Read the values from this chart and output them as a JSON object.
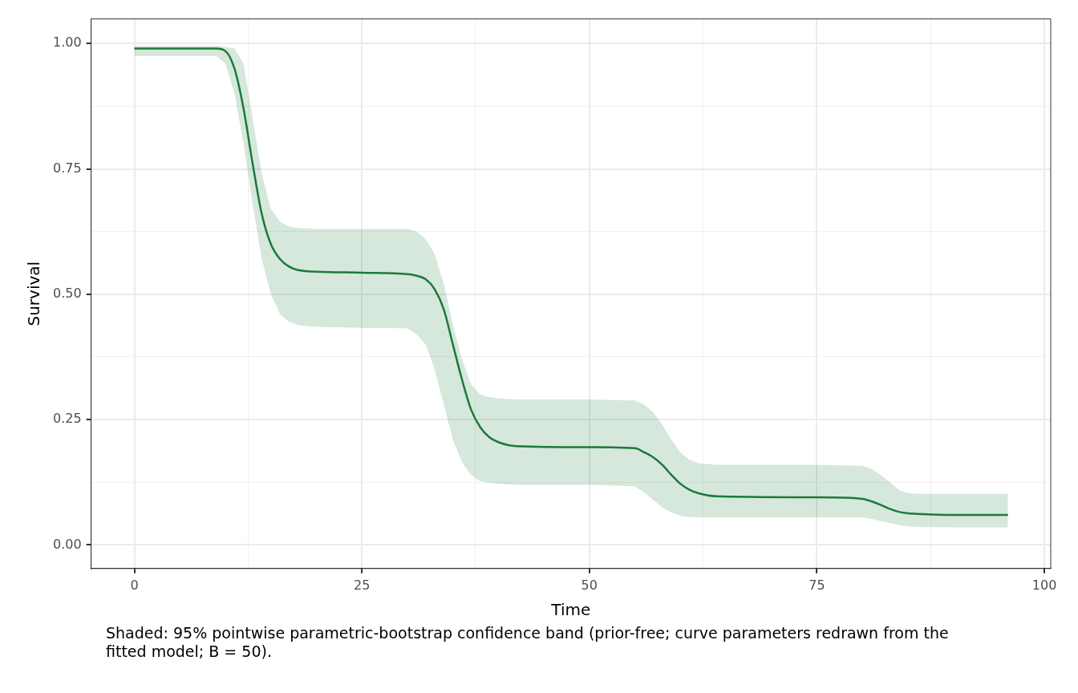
{
  "chart_data": {
    "type": "line",
    "xlabel": "Time",
    "ylabel": "Survival",
    "x": [
      0,
      5,
      9,
      10,
      11,
      12,
      13,
      14,
      15,
      16,
      17,
      18,
      20,
      25,
      30,
      31,
      32,
      33,
      34,
      35,
      36,
      37,
      38,
      39,
      40,
      42,
      50,
      55,
      56,
      57,
      58,
      59,
      60,
      61,
      62,
      64,
      75,
      80,
      81,
      82,
      83,
      84,
      85,
      86,
      90,
      96
    ],
    "series": [
      {
        "color": "#1b7a3a",
        "values": [
          0.99,
          0.99,
          0.99,
          0.985,
          0.95,
          0.87,
          0.76,
          0.66,
          0.6,
          0.57,
          0.555,
          0.548,
          0.545,
          0.543,
          0.54,
          0.537,
          0.53,
          0.51,
          0.47,
          0.4,
          0.33,
          0.27,
          0.235,
          0.215,
          0.205,
          0.197,
          0.195,
          0.193,
          0.185,
          0.175,
          0.16,
          0.14,
          0.122,
          0.11,
          0.103,
          0.097,
          0.095,
          0.092,
          0.087,
          0.08,
          0.072,
          0.066,
          0.063,
          0.062,
          0.06,
          0.06
        ],
        "lower": [
          0.975,
          0.975,
          0.975,
          0.96,
          0.9,
          0.8,
          0.68,
          0.57,
          0.5,
          0.46,
          0.445,
          0.438,
          0.435,
          0.433,
          0.432,
          0.42,
          0.4,
          0.35,
          0.28,
          0.21,
          0.165,
          0.14,
          0.127,
          0.124,
          0.122,
          0.12,
          0.12,
          0.117,
          0.105,
          0.09,
          0.075,
          0.065,
          0.058,
          0.056,
          0.055,
          0.055,
          0.055,
          0.055,
          0.052,
          0.048,
          0.044,
          0.04,
          0.037,
          0.036,
          0.035,
          0.035
        ],
        "upper": [
          0.995,
          0.995,
          0.995,
          0.993,
          0.99,
          0.96,
          0.85,
          0.74,
          0.67,
          0.645,
          0.635,
          0.632,
          0.63,
          0.63,
          0.63,
          0.625,
          0.61,
          0.58,
          0.52,
          0.44,
          0.37,
          0.32,
          0.3,
          0.295,
          0.292,
          0.29,
          0.29,
          0.288,
          0.28,
          0.265,
          0.24,
          0.21,
          0.185,
          0.17,
          0.163,
          0.16,
          0.16,
          0.158,
          0.152,
          0.14,
          0.125,
          0.11,
          0.104,
          0.102,
          0.102,
          0.102
        ]
      }
    ],
    "xlim": [
      -4.75,
      100.7
    ],
    "ylim": [
      -0.047,
      1.049
    ],
    "xticks": [
      0,
      {
        "value": 12.5,
        "label": null
      },
      25,
      {
        "value": 37.5,
        "label": null
      },
      50,
      {
        "value": 62.5,
        "label": null
      },
      75,
      {
        "value": 87.5,
        "label": null
      },
      100
    ],
    "yticks": [
      {
        "value": 0,
        "label": "0.00"
      },
      {
        "value": 0.125,
        "label": null
      },
      {
        "value": 0.25,
        "label": "0.25"
      },
      {
        "value": 0.375,
        "label": null
      },
      {
        "value": 0.5,
        "label": "0.50"
      },
      {
        "value": 0.625,
        "label": null
      },
      {
        "value": 0.75,
        "label": "0.75"
      },
      {
        "value": 0.875,
        "label": null
      },
      {
        "value": 1,
        "label": "1.00"
      }
    ],
    "grid": true,
    "legend": false,
    "marker": "none",
    "line_style": "solid",
    "annotations": [
      "Shaded: 95% pointwise parametric-bootstrap confidence band (prior-free; curve parameters redrawn from the fitted model; B = 50)."
    ]
  }
}
